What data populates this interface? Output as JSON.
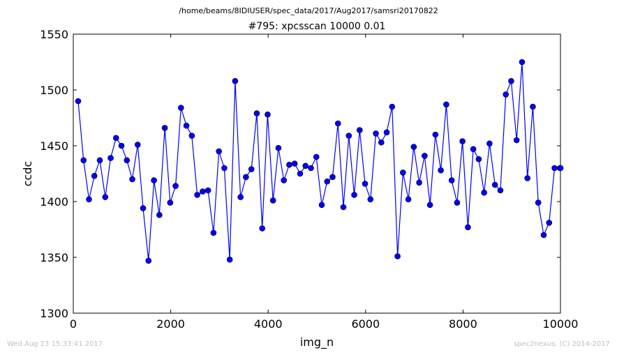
{
  "header": {
    "path": "/home/beams/8IDIUSER/spec_data/2017/Aug2017/samsri20170822"
  },
  "footer": {
    "timestamp": "Wed Aug 23 15:33:41 2017",
    "credit": "spec2nexus, (C) 2014-2017"
  },
  "chart_data": {
    "type": "line",
    "title": "#795: xpcsscan 10000 0.01",
    "xlabel": "img_n",
    "ylabel": "ccdc",
    "xlim": [
      0,
      10000
    ],
    "ylim": [
      1300,
      1550
    ],
    "xticks": [
      0,
      2000,
      4000,
      6000,
      8000,
      10000
    ],
    "yticks": [
      1300,
      1350,
      1400,
      1450,
      1500,
      1550
    ],
    "grid": false,
    "colors": {
      "line": "#0000ff",
      "marker": "#0000ff"
    },
    "series": [
      {
        "x": [
          100,
          211,
          322,
          433,
          544,
          656,
          767,
          878,
          989,
          1100,
          1211,
          1322,
          1433,
          1544,
          1656,
          1767,
          1878,
          1989,
          2100,
          2211,
          2322,
          2433,
          2544,
          2656,
          2767,
          2878,
          2989,
          3100,
          3211,
          3322,
          3433,
          3544,
          3656,
          3767,
          3878,
          3989,
          4100,
          4211,
          4322,
          4433,
          4544,
          4656,
          4767,
          4878,
          4989,
          5100,
          5211,
          5322,
          5433,
          5544,
          5656,
          5767,
          5878,
          5989,
          6100,
          6211,
          6322,
          6433,
          6544,
          6656,
          6767,
          6878,
          6989,
          7100,
          7211,
          7322,
          7433,
          7544,
          7656,
          7767,
          7878,
          7989,
          8100,
          8211,
          8322,
          8433,
          8544,
          8656,
          8767,
          8878,
          8989,
          9100,
          9211,
          9322,
          9433,
          9544,
          9656,
          9767,
          9878,
          9989,
          10000
        ],
        "y": [
          1490,
          1437,
          1402,
          1423,
          1437,
          1404,
          1439,
          1457,
          1450,
          1437,
          1420,
          1451,
          1394,
          1347,
          1419,
          1388,
          1466,
          1399,
          1414,
          1484,
          1468,
          1459,
          1406,
          1409,
          1410,
          1372,
          1445,
          1430,
          1348,
          1508,
          1404,
          1422,
          1429,
          1479,
          1376,
          1478,
          1401,
          1448,
          1419,
          1433,
          1434,
          1425,
          1432,
          1430,
          1440,
          1397,
          1418,
          1422,
          1470,
          1395,
          1459,
          1406,
          1464,
          1416,
          1402,
          1461,
          1453,
          1462,
          1485,
          1351,
          1426,
          1402,
          1449,
          1417,
          1441,
          1397,
          1460,
          1428,
          1487,
          1419,
          1399,
          1454,
          1377,
          1447,
          1438,
          1408,
          1452,
          1415,
          1410,
          1496,
          1508,
          1455,
          1525,
          1421,
          1485,
          1399,
          1370,
          1381,
          1430,
          1430,
          1430
        ]
      }
    ]
  }
}
